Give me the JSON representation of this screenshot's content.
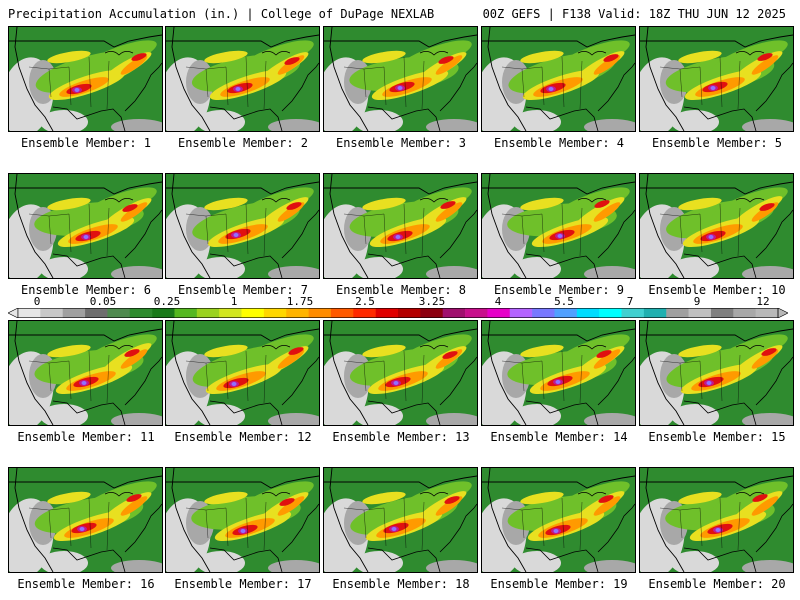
{
  "header": {
    "title": "Precipitation Accumulation (in.) | College of DuPage NEXLAB",
    "run_info": "00Z GEFS | F138 Valid: 18Z THU JUN 12 2025"
  },
  "members": [
    "Ensemble Member: 1",
    "Ensemble Member: 2",
    "Ensemble Member: 3",
    "Ensemble Member: 4",
    "Ensemble Member: 5",
    "Ensemble Member: 6",
    "Ensemble Member: 7",
    "Ensemble Member: 8",
    "Ensemble Member: 9",
    "Ensemble Member: 10",
    "Ensemble Member: 11",
    "Ensemble Member: 12",
    "Ensemble Member: 13",
    "Ensemble Member: 14",
    "Ensemble Member: 15",
    "Ensemble Member: 16",
    "Ensemble Member: 17",
    "Ensemble Member: 18",
    "Ensemble Member: 19",
    "Ensemble Member: 20"
  ],
  "colorbar": {
    "labels": [
      "0",
      "0.05",
      "0.25",
      "1",
      "1.75",
      "2.5",
      "3.25",
      "4",
      "5.5",
      "7",
      "9",
      "12"
    ],
    "colors": [
      "#e6e6e6",
      "#c8c8c8",
      "#a0a0a0",
      "#6e6e6e",
      "#4f8a4f",
      "#2e8b2e",
      "#1a7a1a",
      "#55b820",
      "#9ad21e",
      "#d2e61e",
      "#ffff00",
      "#ffd700",
      "#ffb400",
      "#ff8c00",
      "#ff5a00",
      "#ff2a00",
      "#e00000",
      "#b40000",
      "#8c0010",
      "#a0106e",
      "#c8108c",
      "#e600c8",
      "#b464ff",
      "#7878ff",
      "#50a0ff",
      "#00dcff",
      "#00ffff",
      "#40d0d0",
      "#20b0b0",
      "#a0a0a0",
      "#c0c0c0",
      "#808080",
      "#a8a8a8",
      "#b8b8b8"
    ]
  },
  "map_colors": {
    "dry": "#d9d9d9",
    "light": "#a8a8a8",
    "green": "#2f8b2f",
    "bright_green": "#6fc02a",
    "yellow": "#e8e020",
    "orange": "#ff9a00",
    "red": "#e01010",
    "magenta": "#c01890",
    "purple": "#9070ff"
  }
}
